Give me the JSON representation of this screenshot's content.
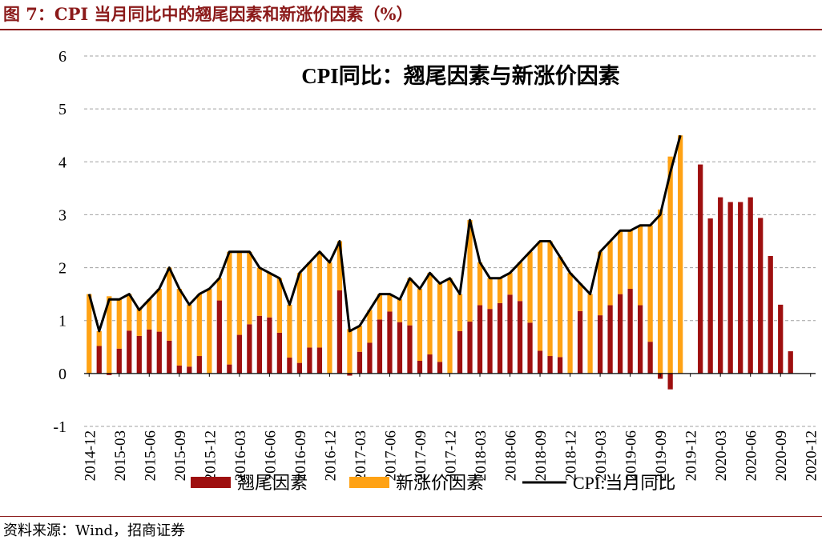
{
  "figure": {
    "title": "图 7：CPI 当月同比中的翘尾因素和新涨价因素（%）",
    "source": "资料来源：Wind，招商证券"
  },
  "colors": {
    "carryover": "#9e0f0f",
    "new_price": "#ffa214",
    "cpi_line": "#000000",
    "title_red": "#8b1a1a",
    "grid": "#a0a0a0"
  },
  "chart_data": {
    "type": "bar",
    "title": "CPI同比：翘尾因素与新涨价因素",
    "ylim": [
      -1,
      6
    ],
    "yticks": [
      -1,
      0,
      1,
      2,
      3,
      4,
      5,
      6
    ],
    "ytick_labels": [
      "-1",
      "0",
      "1",
      "2",
      "3",
      "4",
      "5",
      "6"
    ],
    "grid": true,
    "legend_position": "bottom",
    "x": [
      "2014-12",
      "2015-01",
      "2015-02",
      "2015-03",
      "2015-04",
      "2015-05",
      "2015-06",
      "2015-07",
      "2015-08",
      "2015-09",
      "2015-10",
      "2015-11",
      "2015-12",
      "2016-01",
      "2016-02",
      "2016-03",
      "2016-04",
      "2016-05",
      "2016-06",
      "2016-07",
      "2016-08",
      "2016-09",
      "2016-10",
      "2016-11",
      "2016-12",
      "2017-01",
      "2017-02",
      "2017-03",
      "2017-04",
      "2017-05",
      "2017-06",
      "2017-07",
      "2017-08",
      "2017-09",
      "2017-10",
      "2017-11",
      "2017-12",
      "2018-01",
      "2018-02",
      "2018-03",
      "2018-04",
      "2018-05",
      "2018-06",
      "2018-07",
      "2018-08",
      "2018-09",
      "2018-10",
      "2018-11",
      "2018-12",
      "2019-01",
      "2019-02",
      "2019-03",
      "2019-04",
      "2019-05",
      "2019-06",
      "2019-07",
      "2019-08",
      "2019-09",
      "2019-10",
      "2019-11",
      "2019-12",
      "2020-01",
      "2020-02",
      "2020-03",
      "2020-04",
      "2020-05",
      "2020-06",
      "2020-07",
      "2020-08",
      "2020-09",
      "2020-10",
      "2020-11",
      "2020-12"
    ],
    "xtick_labels": [
      "2014-12",
      "2015-03",
      "2015-06",
      "2015-09",
      "2015-12",
      "2016-03",
      "2016-06",
      "2016-09",
      "2016-12",
      "2017-03",
      "2017-06",
      "2017-09",
      "2017-12",
      "2018-03",
      "2018-06",
      "2018-09",
      "2018-12",
      "2019-03",
      "2019-06",
      "2019-09",
      "2019-12",
      "2020-03",
      "2020-06",
      "2020-09",
      "2020-12"
    ],
    "series": [
      {
        "name": "翘尾因素",
        "kind": "bar",
        "values": [
          0,
          0.52,
          -0.03,
          0.47,
          0.81,
          0.71,
          0.83,
          0.79,
          0.62,
          0.15,
          0.13,
          0.33,
          0,
          1.38,
          0.17,
          0.73,
          0.93,
          1.09,
          1.06,
          0.77,
          0.3,
          0.2,
          0.49,
          0.49,
          0,
          1.57,
          -0.04,
          0.41,
          0.58,
          1.02,
          1.17,
          0.97,
          0.91,
          0.24,
          0.36,
          0.22,
          0,
          0.8,
          0.98,
          1.29,
          1.22,
          1.33,
          1.49,
          1.37,
          0.96,
          0.43,
          0.33,
          0.31,
          0,
          1.18,
          0,
          1.1,
          1.29,
          1.5,
          1.6,
          1.29,
          0.6,
          -0.1,
          -0.3,
          0,
          0,
          3.95,
          2.93,
          3.33,
          3.24,
          3.24,
          3.33,
          2.94,
          2.22,
          1.3,
          0.42,
          0,
          0
        ]
      },
      {
        "name": "新涨价因素",
        "kind": "bar",
        "values": [
          1.5,
          0.28,
          1.46,
          0.93,
          0.69,
          0.53,
          0.57,
          0.81,
          1.38,
          1.45,
          1.17,
          1.17,
          1.6,
          0.42,
          2.13,
          1.57,
          1.37,
          0.91,
          0.84,
          1.03,
          1.0,
          1.7,
          1.61,
          1.81,
          2.1,
          0.93,
          0.84,
          0.49,
          0.62,
          0.48,
          0.33,
          0.43,
          0.89,
          1.36,
          1.54,
          1.48,
          1.8,
          0.7,
          1.92,
          0.81,
          0.58,
          0.47,
          0.41,
          0.73,
          1.34,
          2.07,
          2.17,
          1.89,
          1.9,
          0.52,
          1.5,
          1.2,
          1.21,
          1.2,
          1.1,
          1.51,
          2.2,
          3.1,
          4.1,
          4.5,
          0,
          0,
          0,
          0,
          0,
          0,
          0,
          0,
          0,
          0,
          0,
          0,
          0
        ]
      },
      {
        "name": "CPI:当月同比",
        "kind": "line",
        "values": [
          1.5,
          0.8,
          1.4,
          1.4,
          1.5,
          1.2,
          1.4,
          1.6,
          2.0,
          1.6,
          1.3,
          1.5,
          1.6,
          1.8,
          2.3,
          2.3,
          2.3,
          2.0,
          1.9,
          1.8,
          1.3,
          1.9,
          2.1,
          2.3,
          2.1,
          2.5,
          0.8,
          0.9,
          1.2,
          1.5,
          1.5,
          1.4,
          1.8,
          1.6,
          1.9,
          1.7,
          1.8,
          1.5,
          2.9,
          2.1,
          1.8,
          1.8,
          1.9,
          2.1,
          2.3,
          2.5,
          2.5,
          2.2,
          1.9,
          1.7,
          1.5,
          2.3,
          2.5,
          2.7,
          2.7,
          2.8,
          2.8,
          3.0,
          3.8,
          4.5,
          null,
          null,
          null,
          null,
          null,
          null,
          null,
          null,
          null,
          null,
          null,
          null,
          null
        ]
      }
    ]
  }
}
